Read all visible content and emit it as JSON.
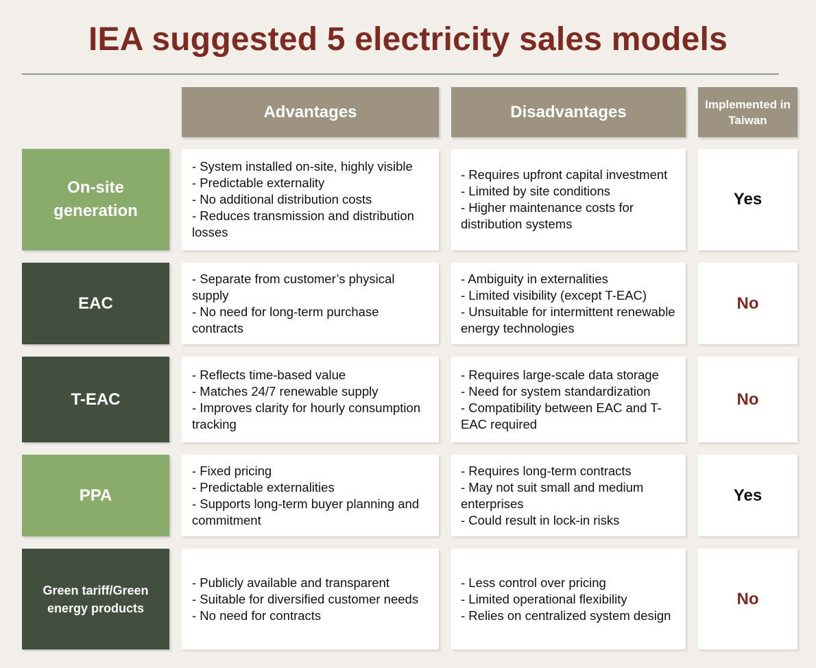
{
  "title": "IEA suggested 5 electricity sales models",
  "headers": {
    "advantages": "Advantages",
    "disadvantages": "Disadvantages",
    "implemented": "Implemented in Taiwan"
  },
  "rows": [
    {
      "label": "On-site generation",
      "advantages": [
        "- System installed on-site, highly visible",
        "- Predictable externality",
        "- No additional distribution costs",
        "- Reduces transmission and distribution losses"
      ],
      "disadvantages": [
        "- Requires upfront capital investment",
        "- Limited by site conditions",
        "- Higher maintenance costs for distribution systems"
      ],
      "implemented": "Yes"
    },
    {
      "label": "EAC",
      "advantages": [
        "- Separate from customer’s physical supply",
        "- No need for long-term purchase contracts"
      ],
      "disadvantages": [
        "- Ambiguity in externalities",
        "- Limited visibility (except T-EAC)",
        "- Unsuitable for intermittent renewable energy technologies"
      ],
      "implemented": "No"
    },
    {
      "label": "T-EAC",
      "advantages": [
        "- Reflects time-based value",
        "- Matches 24/7 renewable supply",
        "- Improves clarity for hourly consumption tracking"
      ],
      "disadvantages": [
        "- Requires large-scale data storage",
        "- Need for system standardization",
        "- Compatibility between EAC and T-EAC required"
      ],
      "implemented": "No"
    },
    {
      "label": "PPA",
      "advantages": [
        "- Fixed pricing",
        "- Predictable externalities",
        "- Supports long-term buyer planning and commitment"
      ],
      "disadvantages": [
        "- Requires long-term contracts",
        "- May not suit small and medium enterprises",
        "- Could result in lock-in risks"
      ],
      "implemented": "Yes"
    },
    {
      "label": "Green tariff/Green energy products",
      "advantages": [
        "- Publicly available and transparent",
        "- Suitable for diversified customer needs",
        "- No need for contracts"
      ],
      "disadvantages": [
        "- Less control over pricing",
        "- Limited operational flexibility",
        "- Relies on centralized system design"
      ],
      "implemented": "No"
    }
  ]
}
